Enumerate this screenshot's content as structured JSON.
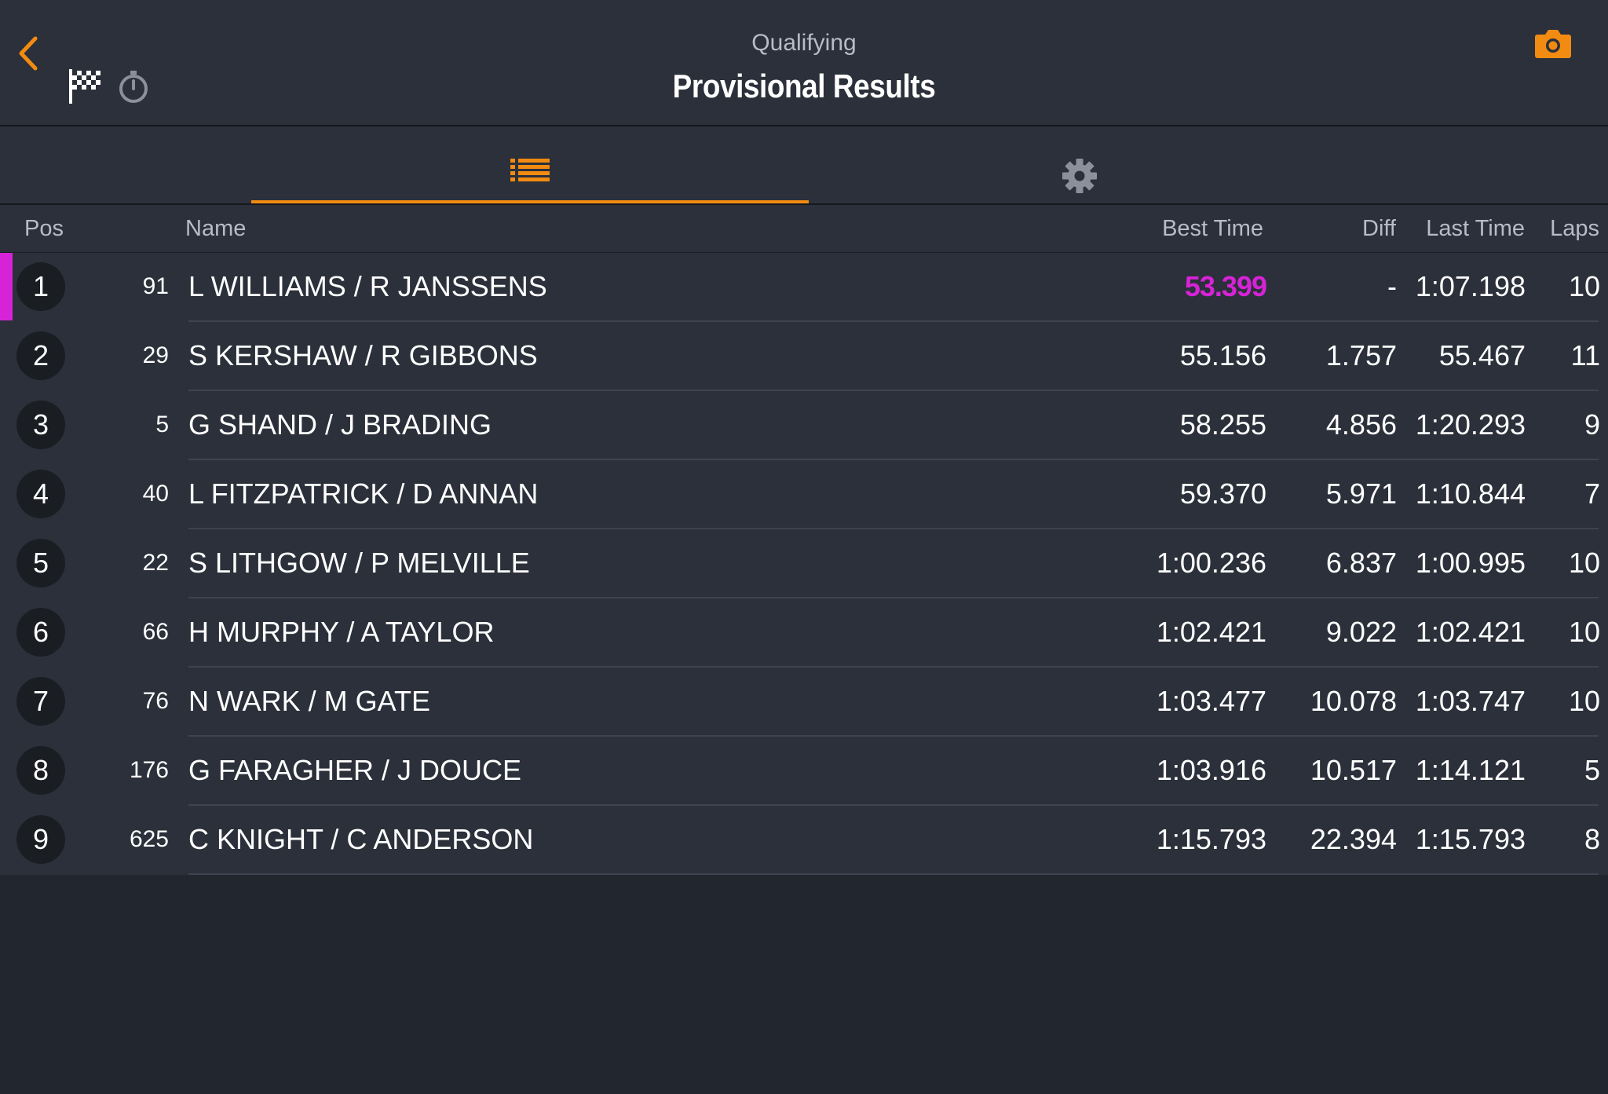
{
  "header": {
    "session": "Qualifying",
    "title": "Provisional Results"
  },
  "icons": {
    "back": "chevron-left-icon",
    "flag": "checkered-flag-icon",
    "timer": "stopwatch-icon",
    "camera": "camera-icon",
    "list": "list-icon",
    "settings": "gear-icon"
  },
  "colors": {
    "accent": "#f28b12",
    "fastest": "#d723d7",
    "background": "#22262f",
    "panel": "#2b303a"
  },
  "table": {
    "columns": {
      "pos": "Pos",
      "name": "Name",
      "best": "Best Time",
      "diff": "Diff",
      "last": "Last Time",
      "laps": "Laps"
    },
    "rows": [
      {
        "pos": "1",
        "number": "91",
        "name": "L WILLIAMS / R JANSSENS",
        "best": "53.399",
        "diff": "-",
        "last": "1:07.198",
        "laps": "10",
        "fastest": true
      },
      {
        "pos": "2",
        "number": "29",
        "name": "S KERSHAW / R GIBBONS",
        "best": "55.156",
        "diff": "1.757",
        "last": "55.467",
        "laps": "11"
      },
      {
        "pos": "3",
        "number": "5",
        "name": "G SHAND / J BRADING",
        "best": "58.255",
        "diff": "4.856",
        "last": "1:20.293",
        "laps": "9"
      },
      {
        "pos": "4",
        "number": "40",
        "name": "L FITZPATRICK / D ANNAN",
        "best": "59.370",
        "diff": "5.971",
        "last": "1:10.844",
        "laps": "7"
      },
      {
        "pos": "5",
        "number": "22",
        "name": "S LITHGOW / P MELVILLE",
        "best": "1:00.236",
        "diff": "6.837",
        "last": "1:00.995",
        "laps": "10"
      },
      {
        "pos": "6",
        "number": "66",
        "name": "H MURPHY / A TAYLOR",
        "best": "1:02.421",
        "diff": "9.022",
        "last": "1:02.421",
        "laps": "10"
      },
      {
        "pos": "7",
        "number": "76",
        "name": "N WARK / M GATE",
        "best": "1:03.477",
        "diff": "10.078",
        "last": "1:03.747",
        "laps": "10"
      },
      {
        "pos": "8",
        "number": "176",
        "name": "G FARAGHER / J DOUCE",
        "best": "1:03.916",
        "diff": "10.517",
        "last": "1:14.121",
        "laps": "5"
      },
      {
        "pos": "9",
        "number": "625",
        "name": "C KNIGHT / C ANDERSON",
        "best": "1:15.793",
        "diff": "22.394",
        "last": "1:15.793",
        "laps": "8"
      }
    ]
  }
}
